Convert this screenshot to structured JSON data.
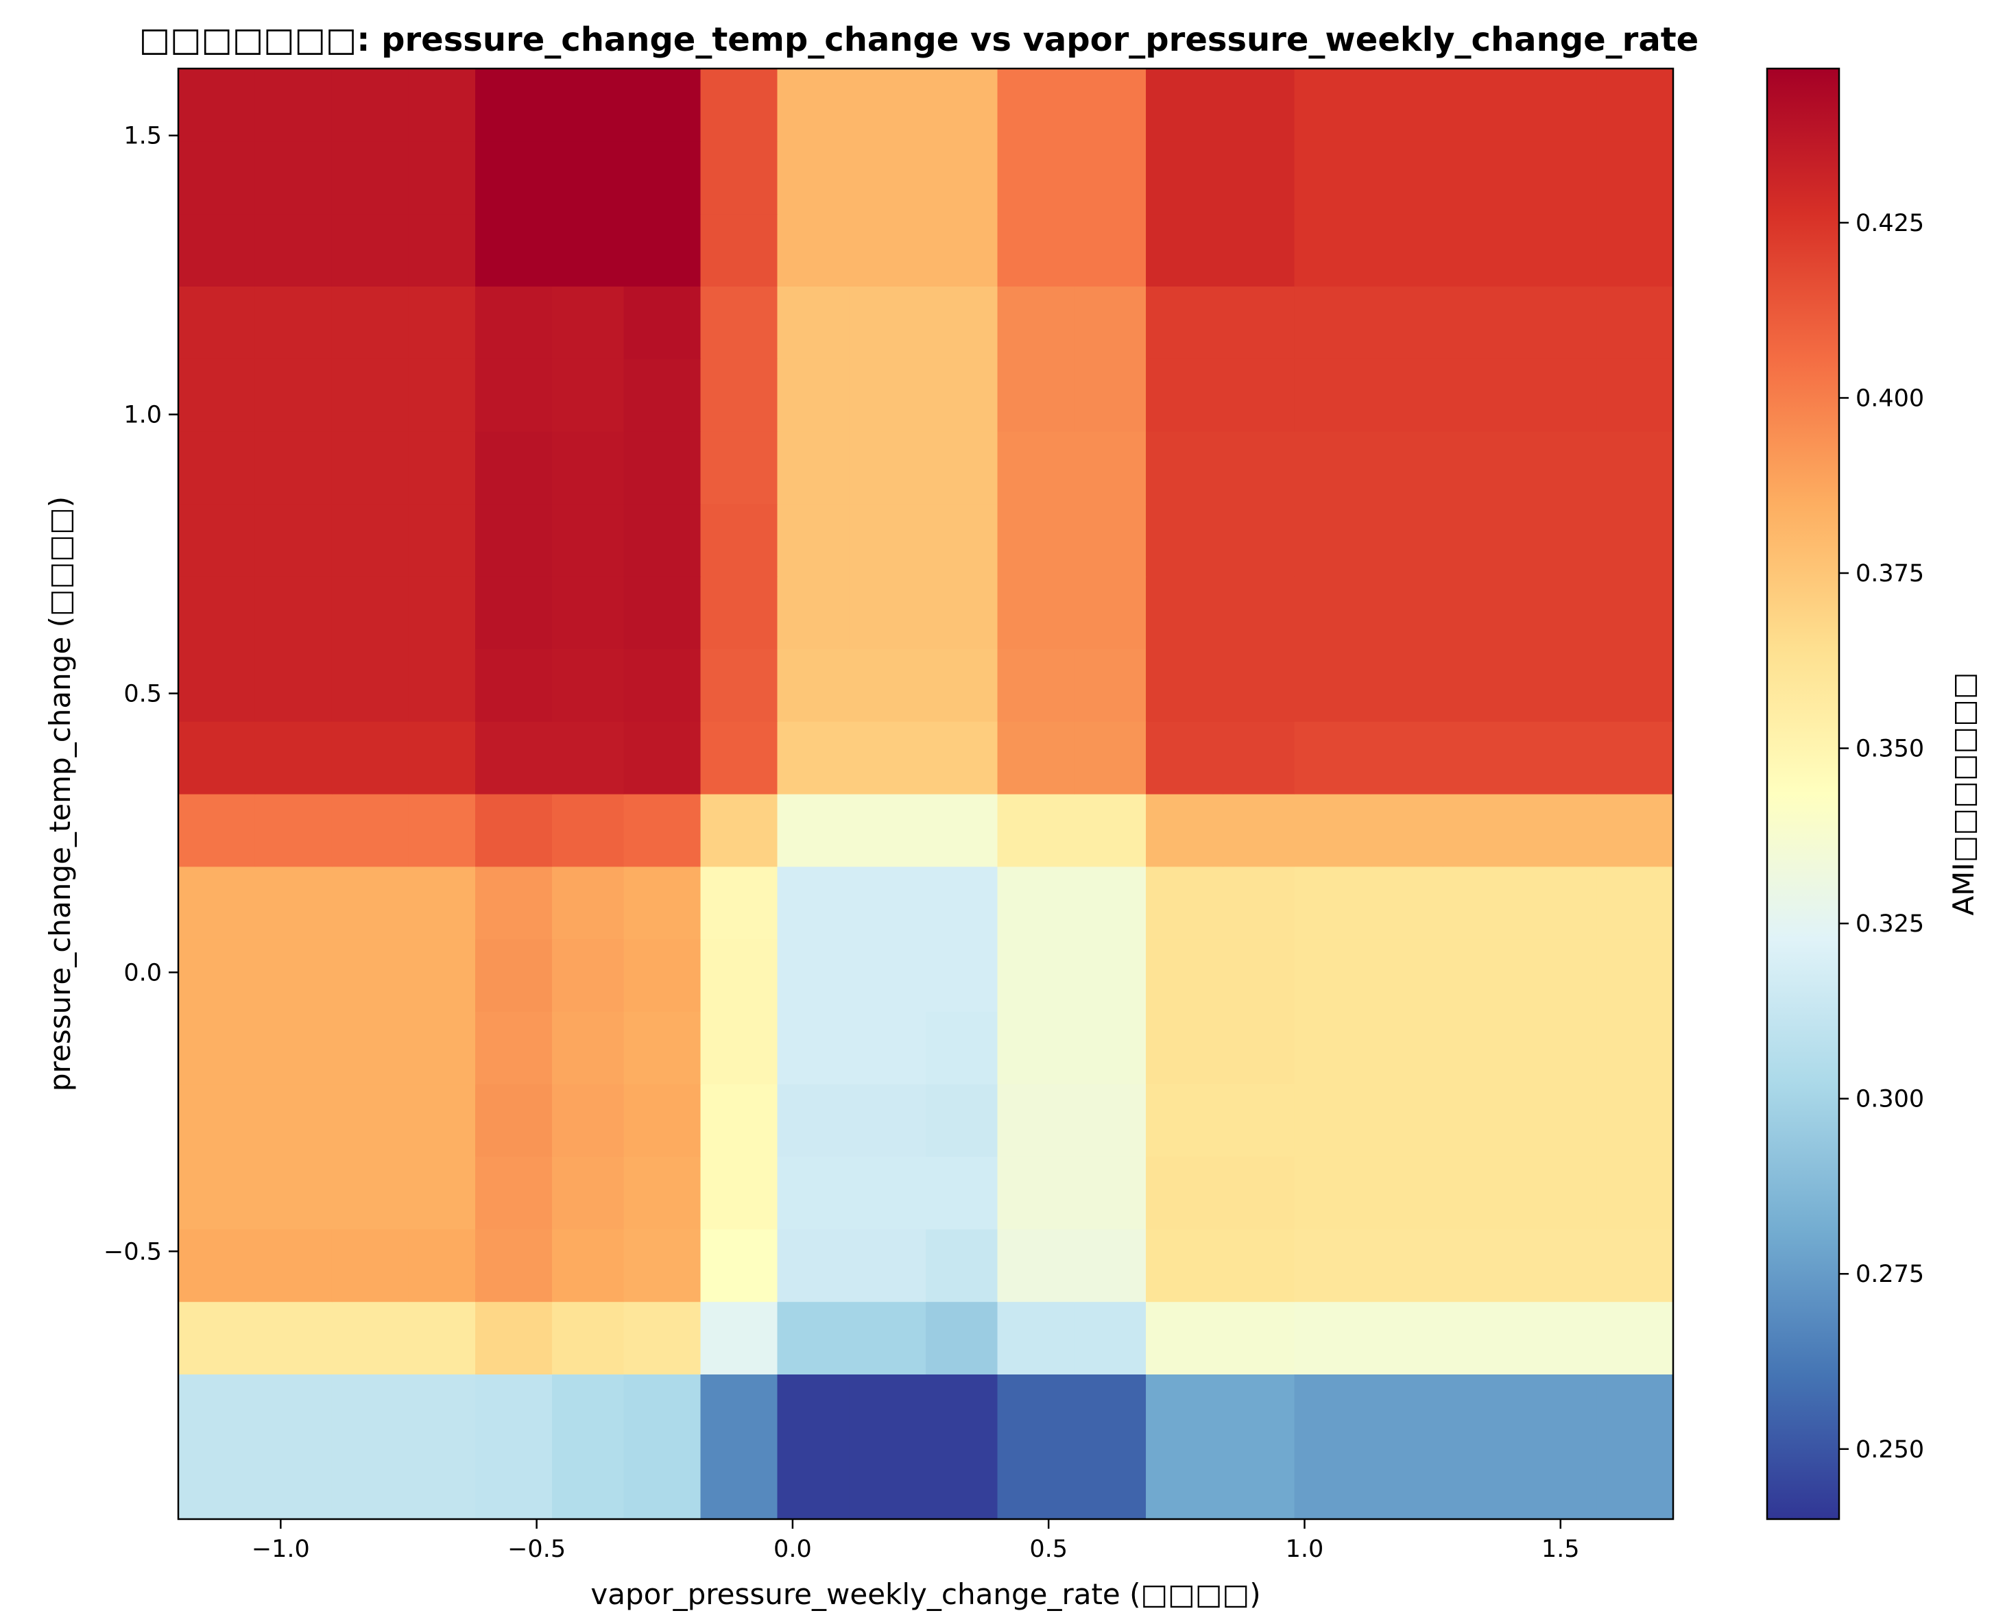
{
  "chart_data": {
    "type": "heatmap",
    "title": "□□□□□□□: pressure_change_temp_change vs vapor_pressure_weekly_change_rate",
    "xlabel": "vapor_pressure_weekly_change_rate (□□□□)",
    "ylabel": "pressure_change_temp_change (□□□□)",
    "colorbar_label": "AMI□□□□□□□",
    "colormap": "RdYlBu_r",
    "color_range": [
      0.24,
      0.447
    ],
    "xlim": [
      -1.2,
      1.72
    ],
    "ylim": [
      -0.98,
      1.62
    ],
    "x_ticks": [
      -1.0,
      -0.5,
      0.0,
      0.5,
      1.0,
      1.5
    ],
    "x_tick_labels": [
      "−1.0",
      "−0.5",
      "0.0",
      "0.5",
      "1.0",
      "1.5"
    ],
    "y_ticks": [
      -0.5,
      0.0,
      0.5,
      1.0,
      1.5
    ],
    "y_tick_labels": [
      "−0.5",
      "0.0",
      "0.5",
      "1.0",
      "1.5"
    ],
    "colorbar_ticks": [
      0.25,
      0.275,
      0.3,
      0.325,
      0.35,
      0.375,
      0.4,
      0.425
    ],
    "colorbar_tick_labels": [
      "0.250",
      "0.275",
      "0.300",
      "0.325",
      "0.350",
      "0.375",
      "0.400",
      "0.425"
    ],
    "x_edges": [
      -1.2,
      -1.05,
      -0.9,
      -0.75,
      -0.62,
      -0.47,
      -0.33,
      -0.18,
      -0.03,
      0.11,
      0.26,
      0.4,
      0.55,
      0.69,
      0.84,
      0.98,
      1.13,
      1.27,
      1.42,
      1.57,
      1.72
    ],
    "y_edges": [
      -0.98,
      -0.72,
      -0.59,
      -0.46,
      -0.33,
      -0.2,
      -0.07,
      0.06,
      0.19,
      0.32,
      0.45,
      0.58,
      0.71,
      0.84,
      0.97,
      1.1,
      1.23,
      1.36,
      1.49,
      1.62
    ],
    "values": [
      [
        0.311,
        0.311,
        0.311,
        0.311,
        0.31,
        0.305,
        0.303,
        0.268,
        0.243,
        0.243,
        0.243,
        0.255,
        0.255,
        0.28,
        0.28,
        0.276,
        0.276,
        0.276,
        0.276,
        0.276
      ],
      [
        0.358,
        0.358,
        0.358,
        0.358,
        0.368,
        0.362,
        0.36,
        0.325,
        0.3,
        0.3,
        0.296,
        0.314,
        0.314,
        0.337,
        0.337,
        0.336,
        0.336,
        0.336,
        0.336,
        0.336
      ],
      [
        0.386,
        0.386,
        0.386,
        0.386,
        0.391,
        0.386,
        0.384,
        0.343,
        0.316,
        0.316,
        0.313,
        0.332,
        0.332,
        0.361,
        0.361,
        0.36,
        0.36,
        0.36,
        0.36,
        0.36
      ],
      [
        0.384,
        0.384,
        0.384,
        0.384,
        0.392,
        0.387,
        0.385,
        0.347,
        0.317,
        0.317,
        0.317,
        0.334,
        0.334,
        0.362,
        0.362,
        0.361,
        0.361,
        0.361,
        0.361,
        0.361
      ],
      [
        0.384,
        0.384,
        0.384,
        0.384,
        0.393,
        0.388,
        0.386,
        0.347,
        0.316,
        0.316,
        0.315,
        0.334,
        0.334,
        0.361,
        0.361,
        0.361,
        0.361,
        0.361,
        0.361,
        0.361
      ],
      [
        0.384,
        0.384,
        0.384,
        0.384,
        0.392,
        0.387,
        0.385,
        0.349,
        0.318,
        0.318,
        0.317,
        0.335,
        0.335,
        0.362,
        0.362,
        0.361,
        0.361,
        0.361,
        0.361,
        0.361
      ],
      [
        0.384,
        0.384,
        0.384,
        0.384,
        0.393,
        0.388,
        0.386,
        0.349,
        0.318,
        0.318,
        0.318,
        0.335,
        0.335,
        0.362,
        0.362,
        0.361,
        0.361,
        0.361,
        0.361,
        0.361
      ],
      [
        0.384,
        0.384,
        0.384,
        0.384,
        0.392,
        0.387,
        0.385,
        0.348,
        0.318,
        0.318,
        0.318,
        0.335,
        0.335,
        0.362,
        0.362,
        0.361,
        0.361,
        0.361,
        0.361,
        0.361
      ],
      [
        0.403,
        0.403,
        0.403,
        0.403,
        0.412,
        0.409,
        0.407,
        0.37,
        0.337,
        0.337,
        0.337,
        0.355,
        0.355,
        0.38,
        0.38,
        0.38,
        0.38,
        0.38,
        0.38,
        0.38
      ],
      [
        0.429,
        0.429,
        0.429,
        0.429,
        0.436,
        0.436,
        0.437,
        0.41,
        0.372,
        0.372,
        0.372,
        0.393,
        0.393,
        0.42,
        0.42,
        0.418,
        0.418,
        0.418,
        0.418,
        0.418
      ],
      [
        0.432,
        0.432,
        0.432,
        0.432,
        0.438,
        0.437,
        0.438,
        0.411,
        0.375,
        0.375,
        0.375,
        0.394,
        0.394,
        0.421,
        0.421,
        0.421,
        0.421,
        0.421,
        0.421,
        0.421
      ],
      [
        0.432,
        0.432,
        0.432,
        0.432,
        0.439,
        0.438,
        0.439,
        0.412,
        0.376,
        0.376,
        0.376,
        0.395,
        0.395,
        0.421,
        0.421,
        0.421,
        0.421,
        0.421,
        0.421,
        0.421
      ],
      [
        0.432,
        0.432,
        0.432,
        0.432,
        0.439,
        0.438,
        0.439,
        0.412,
        0.376,
        0.376,
        0.376,
        0.395,
        0.395,
        0.421,
        0.421,
        0.421,
        0.421,
        0.421,
        0.421,
        0.421
      ],
      [
        0.432,
        0.432,
        0.432,
        0.432,
        0.439,
        0.438,
        0.439,
        0.411,
        0.376,
        0.376,
        0.376,
        0.395,
        0.395,
        0.421,
        0.421,
        0.421,
        0.421,
        0.421,
        0.421,
        0.421
      ],
      [
        0.432,
        0.432,
        0.432,
        0.432,
        0.438,
        0.437,
        0.439,
        0.411,
        0.376,
        0.376,
        0.376,
        0.396,
        0.396,
        0.422,
        0.422,
        0.422,
        0.422,
        0.422,
        0.422,
        0.422
      ],
      [
        0.432,
        0.432,
        0.432,
        0.432,
        0.438,
        0.437,
        0.44,
        0.411,
        0.376,
        0.376,
        0.376,
        0.396,
        0.396,
        0.422,
        0.422,
        0.422,
        0.422,
        0.422,
        0.422,
        0.422
      ],
      [
        0.437,
        0.437,
        0.437,
        0.437,
        0.447,
        0.447,
        0.447,
        0.415,
        0.381,
        0.381,
        0.381,
        0.402,
        0.402,
        0.429,
        0.429,
        0.425,
        0.425,
        0.425,
        0.425,
        0.425
      ],
      [
        0.437,
        0.437,
        0.437,
        0.437,
        0.447,
        0.447,
        0.447,
        0.415,
        0.381,
        0.381,
        0.381,
        0.402,
        0.402,
        0.429,
        0.429,
        0.425,
        0.425,
        0.425,
        0.425,
        0.425
      ],
      [
        0.437,
        0.437,
        0.437,
        0.437,
        0.447,
        0.447,
        0.447,
        0.415,
        0.381,
        0.381,
        0.381,
        0.402,
        0.402,
        0.429,
        0.429,
        0.425,
        0.425,
        0.425,
        0.425,
        0.425
      ]
    ]
  }
}
